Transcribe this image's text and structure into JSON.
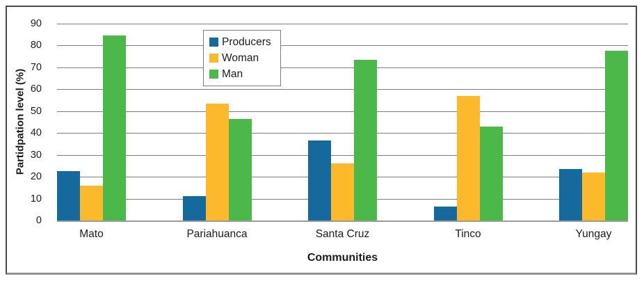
{
  "chart_data": {
    "type": "bar",
    "title": "",
    "xlabel": "Communities",
    "ylabel": "Partidpation level (%)",
    "categories": [
      "Mato",
      "Pariahuanca",
      "Santa Cruz",
      "Tinco",
      "Yungay"
    ],
    "series": [
      {
        "name": "Producers",
        "color": "#16699C",
        "values": [
          22.5,
          11,
          36.5,
          6.5,
          23.5
        ]
      },
      {
        "name": "Woman",
        "color": "#FCB92C",
        "values": [
          16,
          53.5,
          26,
          57,
          22
        ]
      },
      {
        "name": "Man",
        "color": "#4DB84A",
        "values": [
          84.5,
          46.5,
          73.5,
          43,
          77.5
        ]
      }
    ],
    "ylim": [
      0,
      90
    ],
    "ytick_step": 10,
    "yticks": [
      0,
      10,
      20,
      30,
      40,
      50,
      60,
      70,
      80,
      90
    ],
    "grid": "horizontal",
    "legend_position": "top-center-inside"
  },
  "colors": {
    "gridline": "#7e7e7e",
    "baseline": "#9b9b9b",
    "frame_border": "#47484a",
    "frame_border_bottom": "#8f9194",
    "legend_border": "#7d7d7d",
    "text": "#1c1c1c",
    "background": "#ffffff"
  }
}
